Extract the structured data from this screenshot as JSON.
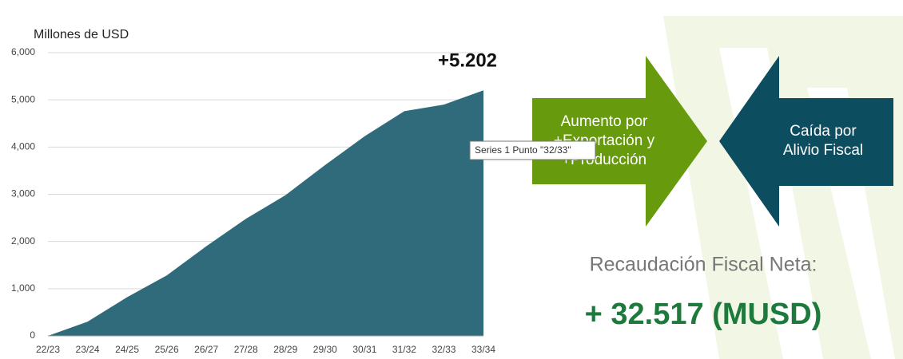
{
  "chart_data": {
    "type": "area",
    "axis_label": "Millones de USD",
    "categories": [
      "22/23",
      "23/24",
      "24/25",
      "25/26",
      "26/27",
      "27/28",
      "28/29",
      "29/30",
      "30/31",
      "31/32",
      "32/33",
      "33/34"
    ],
    "values": [
      0,
      300,
      820,
      1280,
      1900,
      2480,
      2980,
      3620,
      4230,
      4760,
      4900,
      5202
    ],
    "value_labels": [
      null,
      null,
      null,
      null,
      null,
      null,
      null,
      null,
      null,
      null,
      null,
      "+5.202"
    ],
    "color": "#2f6b7b",
    "ylim": [
      0,
      6000
    ],
    "yticks": [
      0,
      {
        "value": 1000,
        "label": "1,000"
      },
      {
        "value": 2000,
        "label": "2,000"
      },
      {
        "value": 3000,
        "label": "3,000"
      },
      {
        "value": 4000,
        "label": "4,000"
      },
      {
        "value": 5000,
        "label": "5,000"
      },
      {
        "value": 6000,
        "label": "6,000"
      }
    ],
    "grid": true
  },
  "tooltip": "Series 1 Punto \"32/33\"",
  "infographic": {
    "increase_arrow": [
      "Aumento por",
      "+Exportación y",
      "+Producción"
    ],
    "decrease_arrow": [
      "Caída por",
      "Alivio Fiscal"
    ],
    "net_label": "Recaudación Fiscal Neta:",
    "net_value": "+ 32.517 (MUSD)"
  }
}
